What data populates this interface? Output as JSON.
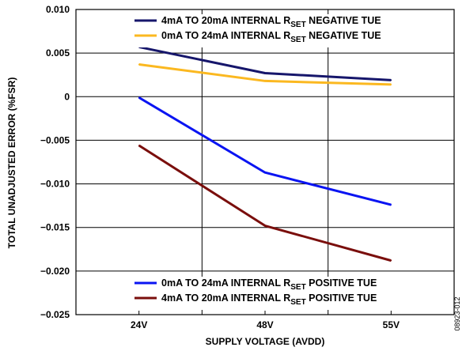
{
  "chart_data": {
    "type": "line",
    "categories": [
      "24V",
      "48V",
      "55V"
    ],
    "xlabel": "SUPPLY VOLTAGE (AVDD)",
    "ylabel": "TOTAL UNADJUSTED ERROR (%FSR)",
    "ylim": [
      -0.025,
      0.01
    ],
    "yticks": [
      0.01,
      0.005,
      0,
      -0.005,
      -0.01,
      -0.015,
      -0.02,
      -0.025
    ],
    "ytick_labels": [
      "0.010",
      "0.005",
      "0",
      "−0.005",
      "−0.010",
      "−0.015",
      "−0.020",
      "−0.025"
    ],
    "grid": true,
    "series": [
      {
        "name": "4mA TO 20mA INTERNAL RSET NEGATIVE TUE",
        "label_pre": "4mA TO 20mA INTERNAL R",
        "label_sub": "SET",
        "label_post": " NEGATIVE TUE",
        "color": "#16166b",
        "values": [
          0.0057,
          0.0027,
          0.0019
        ]
      },
      {
        "name": "0mA TO 24mA INTERNAL RSET NEGATIVE TUE",
        "label_pre": "0mA TO 24mA INTERNAL R",
        "label_sub": "SET",
        "label_post": " NEGATIVE TUE",
        "color": "#fbb820",
        "values": [
          0.0037,
          0.0018,
          0.0014
        ]
      },
      {
        "name": "0mA TO 24mA INTERNAL RSET POSITIVE TUE",
        "label_pre": "0mA TO 24mA INTERNAL R",
        "label_sub": "SET",
        "label_post": " POSITIVE TUE",
        "color": "#0a14f2",
        "values": [
          -0.0001,
          -0.0087,
          -0.0124
        ]
      },
      {
        "name": "4mA TO 20mA INTERNAL RSET POSITIVE TUE",
        "label_pre": "4mA TO 20mA INTERNAL R",
        "label_sub": "SET",
        "label_post": " POSITIVE TUE",
        "color": "#7a0e0c",
        "values": [
          -0.0056,
          -0.0148,
          -0.0188
        ]
      }
    ],
    "legend_top": [
      0,
      1
    ],
    "legend_bottom": [
      2,
      3
    ],
    "figure_id": "08923-012"
  }
}
